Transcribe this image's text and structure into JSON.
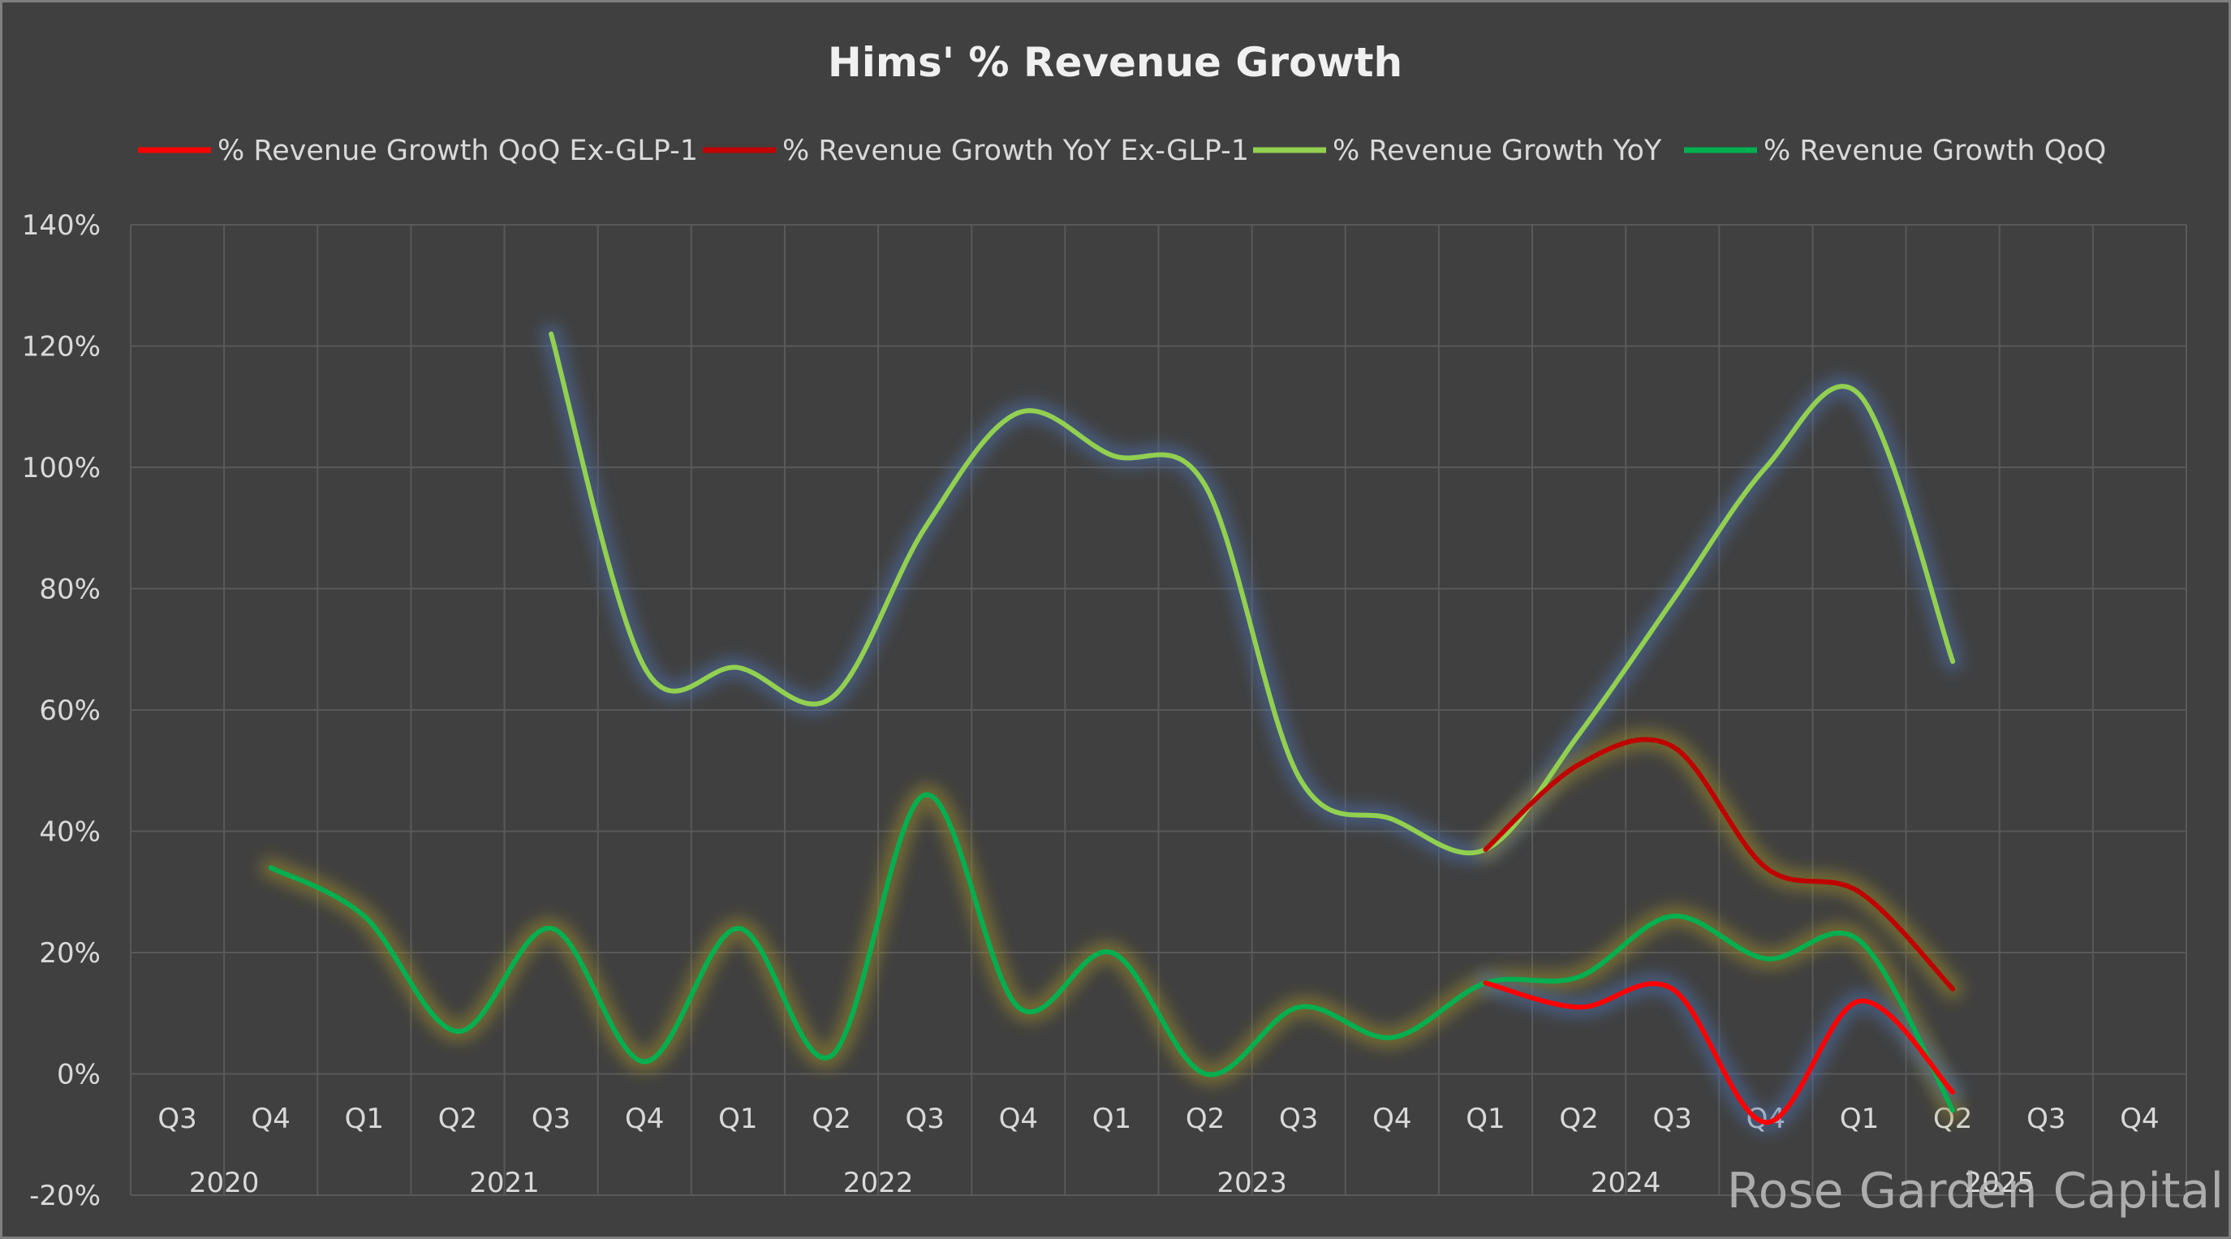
{
  "chart_data": {
    "type": "line",
    "title": "Hims' % Revenue Growth",
    "legend_position": "top",
    "grid": true,
    "ylim": [
      -20,
      140
    ],
    "y_ticks": [
      "140%",
      "120%",
      "100%",
      "80%",
      "60%",
      "40%",
      "20%",
      "0%",
      "-20%"
    ],
    "y_tick_values": [
      140,
      120,
      100,
      80,
      60,
      40,
      20,
      0,
      -20
    ],
    "categories": [
      "Q3",
      "Q4",
      "Q1",
      "Q2",
      "Q3",
      "Q4",
      "Q1",
      "Q2",
      "Q3",
      "Q4",
      "Q1",
      "Q2",
      "Q3",
      "Q4",
      "Q1",
      "Q2",
      "Q3",
      "Q4",
      "Q1",
      "Q2",
      "Q3",
      "Q4"
    ],
    "year_labels": [
      {
        "label": "2020",
        "from": 0,
        "to": 1
      },
      {
        "label": "2021",
        "from": 2,
        "to": 5
      },
      {
        "label": "2022",
        "from": 6,
        "to": 9
      },
      {
        "label": "2023",
        "from": 10,
        "to": 13
      },
      {
        "label": "2024",
        "from": 14,
        "to": 17
      },
      {
        "label": "2025",
        "from": 18,
        "to": 21
      }
    ],
    "series": [
      {
        "name": "% Revenue Growth QoQ Ex-GLP-1",
        "color": "#ff0000",
        "glow": "#4a6fa8",
        "values": [
          null,
          null,
          null,
          null,
          null,
          null,
          null,
          null,
          null,
          null,
          null,
          null,
          null,
          null,
          15,
          11,
          14,
          -8,
          12,
          -3,
          null,
          null
        ]
      },
      {
        "name": "% Revenue Growth YoY Ex-GLP-1",
        "color": "#c00000",
        "glow": "#9a8a2a",
        "values": [
          null,
          null,
          null,
          null,
          null,
          null,
          null,
          null,
          null,
          null,
          null,
          null,
          null,
          null,
          37,
          51,
          54,
          34,
          30,
          14,
          null,
          null
        ]
      },
      {
        "name": "% Revenue Growth YoY",
        "color": "#92d050",
        "glow": "#4a6fa8",
        "values": [
          null,
          null,
          null,
          null,
          122,
          67,
          67,
          62,
          90,
          109,
          102,
          97,
          49,
          42,
          37,
          56,
          78,
          100,
          112,
          68,
          null,
          null
        ]
      },
      {
        "name": "% Revenue Growth QoQ",
        "color": "#00b050",
        "glow": "#9a8a2a",
        "values": [
          null,
          34,
          26,
          7,
          24,
          2,
          24,
          3,
          46,
          11,
          20,
          0,
          11,
          6,
          15,
          16,
          26,
          19,
          22,
          -6,
          null,
          null
        ]
      }
    ],
    "watermark": "Rose Garden Capital"
  }
}
